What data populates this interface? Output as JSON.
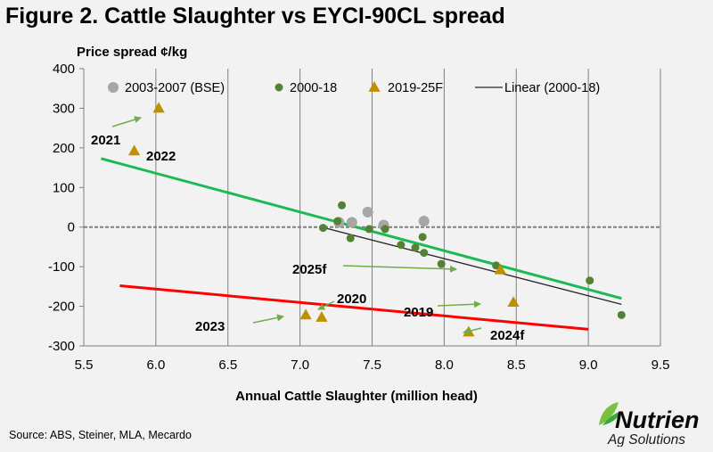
{
  "title": "Figure 2. Cattle Slaughter vs EYCI-90CL spread",
  "source": "Source: ABS, Steiner, MLA, Mecardo",
  "logo": {
    "name": "Nutrien",
    "tagline": "Ag Solutions"
  },
  "chart_data": {
    "type": "scatter",
    "title": "Figure 2. Cattle Slaughter vs EYCI-90CL spread",
    "xlabel": "Annual Cattle Slaughter (million head)",
    "ylabel": "Price spread ¢/kg",
    "xlim": [
      5.5,
      9.5
    ],
    "ylim": [
      -300,
      400
    ],
    "x_ticks": [
      "5.5",
      "6.0",
      "6.5",
      "7.0",
      "7.5",
      "8.0",
      "8.5",
      "9.0",
      "9.5"
    ],
    "y_ticks": [
      "400",
      "300",
      "200",
      "100",
      "0",
      "-100",
      "-200",
      "-300"
    ],
    "grid": "vertical",
    "legend": {
      "position": "top",
      "entries": [
        "2003-2007 (BSE)",
        "2000-18",
        "2019-25F",
        "Linear (2000-18)"
      ]
    },
    "colors": {
      "bse": "#a6a6a6",
      "hist": "#548235",
      "forecast": "#bf9000",
      "linear": "#262626",
      "green_line": "#1db954",
      "red_line": "#ff0000",
      "arrow": "#70ad47"
    },
    "series": [
      {
        "name": "2003-2007 (BSE)",
        "marker": "circle",
        "points": [
          [
            7.27,
            12
          ],
          [
            7.36,
            12
          ],
          [
            7.47,
            38
          ],
          [
            7.58,
            5
          ],
          [
            7.86,
            15
          ]
        ]
      },
      {
        "name": "2000-18",
        "marker": "circle",
        "points": [
          [
            7.16,
            -2
          ],
          [
            7.26,
            15
          ],
          [
            7.29,
            55
          ],
          [
            7.35,
            -28
          ],
          [
            7.48,
            -5
          ],
          [
            7.59,
            -5
          ],
          [
            7.7,
            -45
          ],
          [
            7.8,
            -52
          ],
          [
            7.85,
            -25
          ],
          [
            7.86,
            -65
          ],
          [
            7.98,
            -93
          ],
          [
            8.36,
            -97
          ],
          [
            9.01,
            -135
          ],
          [
            9.23,
            -222
          ]
        ]
      },
      {
        "name": "2019-25F",
        "marker": "triangle",
        "points": [
          {
            "x": 6.02,
            "y": 300,
            "label": "2021"
          },
          {
            "x": 5.85,
            "y": 192,
            "label": "2022"
          },
          {
            "x": 7.04,
            "y": -222,
            "label": "2023"
          },
          {
            "x": 7.15,
            "y": -228,
            "label": "2020"
          },
          {
            "x": 8.48,
            "y": -190,
            "label": "2019"
          },
          {
            "x": 8.17,
            "y": -265,
            "label": "2024f"
          },
          {
            "x": 8.39,
            "y": -108,
            "label": "2025f"
          }
        ]
      },
      {
        "name": "Linear (2000-18)",
        "type": "line",
        "points": [
          [
            7.15,
            0
          ],
          [
            9.23,
            -195
          ]
        ]
      }
    ],
    "trend_lines": [
      {
        "color": "green",
        "points": [
          [
            5.62,
            173
          ],
          [
            9.23,
            -180
          ]
        ]
      },
      {
        "color": "red",
        "points": [
          [
            5.75,
            -148
          ],
          [
            9.0,
            -258
          ]
        ]
      }
    ],
    "annotations": [
      {
        "text": "2021",
        "arrow": true
      },
      {
        "text": "2022",
        "arrow": false
      },
      {
        "text": "2025f",
        "arrow": true
      },
      {
        "text": "2020",
        "arrow": true
      },
      {
        "text": "2023",
        "arrow": true
      },
      {
        "text": "2019",
        "arrow": true
      },
      {
        "text": "2024f",
        "arrow": true
      }
    ]
  }
}
